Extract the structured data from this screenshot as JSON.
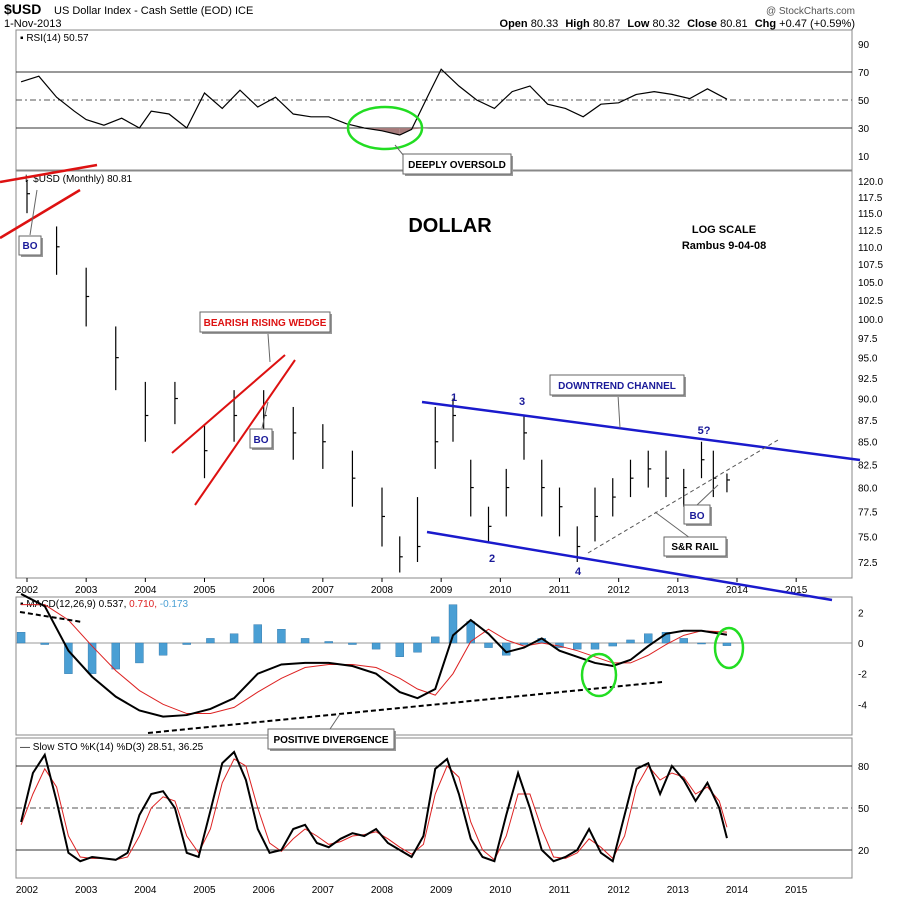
{
  "header": {
    "symbol": "$USD",
    "name": "US Dollar Index - Cash Settle (EOD)",
    "exchange": "ICE",
    "date": "1-Nov-2013",
    "open_label": "Open",
    "open": "80.33",
    "high_label": "High",
    "high": "80.87",
    "low_label": "Low",
    "low": "80.32",
    "close_label": "Close",
    "close": "80.81",
    "chg_label": "Chg",
    "chg": "+0.47 (+0.59%)",
    "watermark": "@ StockCharts.com"
  },
  "panels": {
    "rsi_title": "RSI(14) 50.57",
    "price_title": "$USD (Monthly) 80.81",
    "macd_title_prefix": "MACD(12,26,9) 0.537,",
    "macd_signal_val": "0.710,",
    "macd_hist_val": "-0.173",
    "sto_title": "Slow STO %K(14) %D(3) 28.51, 36.25"
  },
  "annotations": {
    "main_title": "DOLLAR",
    "log_scale": "LOG SCALE",
    "author": "Rambus 9-04-08",
    "deeply_oversold": "DEEPLY OVERSOLD",
    "bearish_wedge": "BEARISH RISING WEDGE",
    "downtrend_channel": "DOWNTREND CHANNEL",
    "sr_rail": "S&R RAIL",
    "positive_divergence": "POSITIVE DIVERGENCE",
    "bo": "BO",
    "waves": [
      "1",
      "2",
      "3",
      "4",
      "5?"
    ]
  },
  "colors": {
    "trend_red": "#dd1111",
    "channel_blue": "#1a1acc",
    "circle_green": "#22dd22",
    "hist_blue": "#4a9fd4",
    "rsi_fill": "#a67b7b",
    "signal_red": "#dd2222",
    "bo_text": "#1a1a99"
  },
  "chart_data": [
    {
      "type": "line",
      "name": "RSI(14)",
      "y_ticks": [
        10,
        30,
        50,
        70,
        90
      ],
      "ylim": [
        0,
        100
      ],
      "x": [
        2001.9,
        2002.2,
        2002.5,
        2002.8,
        2003.0,
        2003.3,
        2003.6,
        2003.9,
        2004.1,
        2004.4,
        2004.7,
        2005.0,
        2005.3,
        2005.6,
        2005.9,
        2006.2,
        2006.5,
        2006.8,
        2007.1,
        2007.4,
        2007.7,
        2008.0,
        2008.3,
        2008.5,
        2008.8,
        2009.0,
        2009.3,
        2009.6,
        2009.9,
        2010.2,
        2010.5,
        2010.8,
        2011.1,
        2011.4,
        2011.7,
        2012.0,
        2012.3,
        2012.6,
        2012.9,
        2013.2,
        2013.5,
        2013.83
      ],
      "values": [
        63,
        67,
        52,
        42,
        36,
        32,
        37,
        30,
        42,
        40,
        30,
        55,
        44,
        57,
        45,
        52,
        40,
        38,
        38,
        33,
        30,
        28,
        25,
        29,
        55,
        72,
        60,
        50,
        44,
        56,
        60,
        47,
        44,
        38,
        47,
        48,
        54,
        56,
        54,
        51,
        58,
        50.57
      ]
    },
    {
      "type": "bar",
      "name": "$USD (Monthly)",
      "scale": "log",
      "y_ticks": [
        72.5,
        75.0,
        77.5,
        80.0,
        82.5,
        85.0,
        87.5,
        90.0,
        92.5,
        95.0,
        97.5,
        100.0,
        102.5,
        105.0,
        107.5,
        110.0,
        112.5,
        115.0,
        117.5,
        120.0
      ],
      "x_ticks": [
        "2002",
        "2003",
        "2004",
        "2005",
        "2006",
        "2007",
        "2008",
        "2009",
        "2010",
        "2011",
        "2012",
        "2013",
        "2014",
        "2015"
      ],
      "x": [
        2002.0,
        2002.5,
        2003.0,
        2003.5,
        2004.0,
        2004.5,
        2005.0,
        2005.5,
        2006.0,
        2006.5,
        2007.0,
        2007.5,
        2008.0,
        2008.3,
        2008.6,
        2008.9,
        2009.2,
        2009.5,
        2009.8,
        2010.1,
        2010.4,
        2010.7,
        2011.0,
        2011.3,
        2011.6,
        2011.9,
        2012.2,
        2012.5,
        2012.8,
        2013.1,
        2013.4,
        2013.6,
        2013.83
      ],
      "values": [
        118,
        110,
        103,
        95,
        88,
        90,
        84,
        88,
        88,
        86,
        85,
        81,
        77,
        73,
        74,
        85,
        88,
        80,
        76,
        80,
        86,
        80,
        78,
        74,
        77,
        79,
        81,
        82,
        81,
        80,
        83,
        81,
        80.81
      ],
      "highs": [
        120,
        113,
        107,
        99,
        92,
        92,
        87,
        91,
        91,
        89,
        87,
        84,
        80,
        75,
        79,
        89,
        90,
        83,
        78,
        82,
        88,
        83,
        80,
        76,
        80,
        81,
        83,
        84,
        84,
        82,
        85,
        84,
        81.5
      ],
      "lows": [
        115,
        106,
        99,
        91,
        85,
        87,
        81,
        85,
        85,
        83,
        82,
        78,
        74,
        71.5,
        72.5,
        82,
        85,
        77,
        74.5,
        77,
        83,
        77,
        75,
        72.5,
        74.5,
        77,
        79,
        80,
        79,
        78,
        81,
        79,
        79.5
      ]
    },
    {
      "type": "line",
      "name": "MACD(12,26,9)",
      "y_ticks": [
        -4,
        -2,
        0,
        2
      ],
      "ylim": [
        -6,
        3
      ],
      "x": [
        2001.9,
        2002.3,
        2002.7,
        2003.1,
        2003.5,
        2003.9,
        2004.3,
        2004.7,
        2005.1,
        2005.5,
        2005.9,
        2006.3,
        2006.7,
        2007.1,
        2007.5,
        2007.9,
        2008.3,
        2008.6,
        2008.9,
        2009.2,
        2009.5,
        2009.8,
        2010.1,
        2010.4,
        2010.7,
        2011.0,
        2011.3,
        2011.6,
        2011.9,
        2012.2,
        2012.5,
        2012.8,
        2013.1,
        2013.4,
        2013.83
      ],
      "macd": [
        3.2,
        2.4,
        -0.5,
        -2.2,
        -3.5,
        -4.4,
        -4.8,
        -4.7,
        -4.3,
        -3.6,
        -2.0,
        -1.4,
        -1.3,
        -1.3,
        -1.5,
        -2.0,
        -3.2,
        -3.6,
        -3.0,
        0.5,
        1.5,
        0.6,
        -0.6,
        -0.3,
        0.3,
        -0.5,
        -0.9,
        -1.3,
        -1.5,
        -1.1,
        -0.2,
        0.6,
        0.8,
        0.8,
        0.537
      ],
      "signal": [
        2.5,
        2.5,
        1.5,
        -0.2,
        -1.8,
        -3.1,
        -4.0,
        -4.6,
        -4.6,
        -4.2,
        -3.2,
        -2.3,
        -1.6,
        -1.4,
        -1.4,
        -1.6,
        -2.3,
        -3.0,
        -3.4,
        -2.0,
        0.1,
        0.9,
        0.2,
        -0.2,
        0.0,
        -0.2,
        -0.5,
        -0.9,
        -1.3,
        -1.3,
        -0.8,
        -0.1,
        0.5,
        0.8,
        0.71
      ]
    },
    {
      "type": "line",
      "name": "Slow STO %K(14) %D(3)",
      "y_ticks": [
        20,
        50,
        80
      ],
      "ylim": [
        0,
        100
      ],
      "x": [
        2001.9,
        2002.1,
        2002.3,
        2002.5,
        2002.7,
        2002.9,
        2003.1,
        2003.3,
        2003.5,
        2003.7,
        2003.9,
        2004.1,
        2004.3,
        2004.5,
        2004.7,
        2004.9,
        2005.1,
        2005.3,
        2005.5,
        2005.7,
        2005.9,
        2006.1,
        2006.3,
        2006.5,
        2006.7,
        2006.9,
        2007.1,
        2007.3,
        2007.5,
        2007.7,
        2007.9,
        2008.1,
        2008.3,
        2008.5,
        2008.7,
        2008.9,
        2009.1,
        2009.3,
        2009.5,
        2009.7,
        2009.9,
        2010.1,
        2010.3,
        2010.5,
        2010.7,
        2010.9,
        2011.1,
        2011.3,
        2011.5,
        2011.7,
        2011.9,
        2012.1,
        2012.3,
        2012.5,
        2012.7,
        2012.9,
        2013.1,
        2013.3,
        2013.5,
        2013.7,
        2013.83
      ],
      "k": [
        40,
        75,
        88,
        55,
        18,
        12,
        15,
        14,
        13,
        18,
        45,
        60,
        62,
        50,
        18,
        15,
        48,
        82,
        90,
        70,
        35,
        18,
        20,
        35,
        38,
        25,
        22,
        28,
        32,
        30,
        35,
        25,
        20,
        15,
        30,
        78,
        85,
        60,
        28,
        15,
        12,
        45,
        75,
        50,
        20,
        12,
        15,
        20,
        35,
        18,
        12,
        45,
        78,
        82,
        60,
        80,
        70,
        55,
        68,
        50,
        28.51
      ],
      "d": [
        38,
        60,
        78,
        65,
        30,
        15,
        14,
        14,
        13,
        15,
        30,
        50,
        58,
        55,
        30,
        18,
        35,
        68,
        85,
        80,
        50,
        25,
        19,
        28,
        35,
        30,
        24,
        26,
        30,
        31,
        33,
        28,
        22,
        17,
        24,
        60,
        80,
        72,
        40,
        20,
        13,
        30,
        60,
        60,
        35,
        15,
        14,
        18,
        28,
        22,
        14,
        30,
        65,
        80,
        70,
        75,
        72,
        60,
        65,
        55,
        36.25
      ]
    }
  ]
}
